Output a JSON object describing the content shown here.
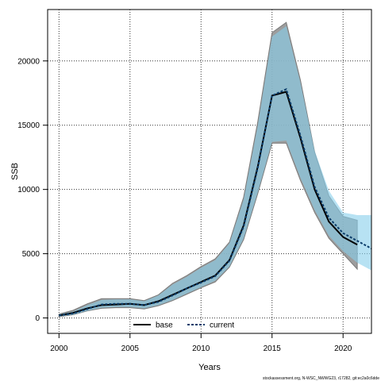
{
  "chart_data": {
    "type": "line",
    "xlabel": "Years",
    "ylabel": "SSB",
    "xlim": [
      1999.2,
      2022
    ],
    "ylim": [
      -1200,
      24000
    ],
    "xticks": [
      2000,
      2005,
      2010,
      2015,
      2020
    ],
    "yticks": [
      0,
      5000,
      10000,
      15000,
      20000
    ],
    "grid": true,
    "legend_position": "bottom-center",
    "footer": "stockassessment.org, N-WSC_NWWG23, r17282, git:ec2a0c6dde",
    "series": [
      {
        "name": "base",
        "color": "#000000",
        "band_color": "#8c8c8c",
        "x": [
          2000,
          2001,
          2002,
          2003,
          2004,
          2005,
          2006,
          2007,
          2008,
          2009,
          2010,
          2011,
          2012,
          2013,
          2014,
          2015,
          2016,
          2017,
          2018,
          2019,
          2020,
          2021
        ],
        "values": [
          200,
          400,
          750,
          1000,
          1050,
          1100,
          1000,
          1300,
          1800,
          2300,
          2800,
          3300,
          4500,
          7200,
          11800,
          17300,
          17600,
          14000,
          10000,
          7500,
          6300,
          5700
        ],
        "lower": [
          100,
          250,
          550,
          750,
          800,
          800,
          700,
          950,
          1350,
          1850,
          2350,
          2800,
          3950,
          6100,
          9700,
          13600,
          13600,
          10700,
          8200,
          6200,
          5000,
          3800
        ],
        "upper": [
          300,
          600,
          1100,
          1500,
          1500,
          1500,
          1350,
          1800,
          2700,
          3300,
          4000,
          4600,
          5900,
          9400,
          15300,
          22200,
          23000,
          18500,
          12900,
          9500,
          7900,
          7600
        ]
      },
      {
        "name": "current",
        "color": "#0b3d6b",
        "band_color": "#87ceeb",
        "x": [
          2000,
          2001,
          2002,
          2003,
          2004,
          2005,
          2006,
          2007,
          2008,
          2009,
          2010,
          2011,
          2012,
          2013,
          2014,
          2015,
          2016,
          2017,
          2018,
          2019,
          2020,
          2021,
          2022
        ],
        "values": [
          200,
          350,
          700,
          1050,
          1100,
          1100,
          1000,
          1250,
          1750,
          2300,
          2750,
          3250,
          4450,
          7100,
          11700,
          17300,
          17800,
          14200,
          10200,
          7800,
          6600,
          6000,
          5400
        ],
        "lower": [
          120,
          250,
          550,
          800,
          850,
          850,
          750,
          1000,
          1400,
          1900,
          2400,
          2900,
          4000,
          6200,
          9800,
          13700,
          13800,
          10900,
          8400,
          6400,
          5200,
          4300,
          3700
        ],
        "upper": [
          280,
          500,
          1000,
          1400,
          1450,
          1450,
          1300,
          1750,
          2600,
          3200,
          3900,
          4500,
          5800,
          9200,
          15000,
          21900,
          22700,
          18300,
          13000,
          9900,
          8200,
          8000,
          8000
        ]
      }
    ]
  }
}
